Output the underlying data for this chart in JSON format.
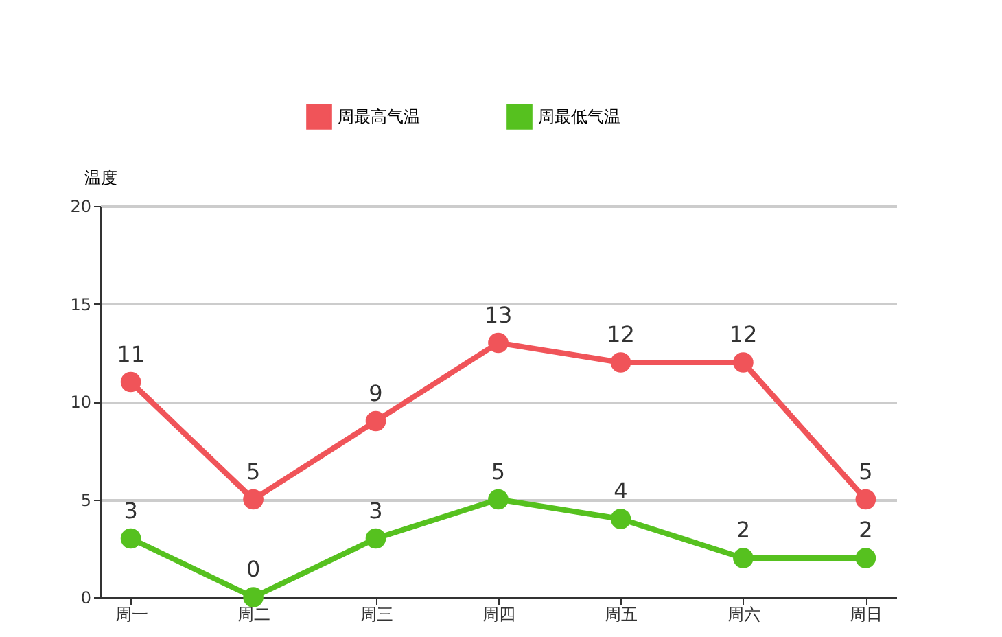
{
  "chart_data": {
    "type": "line",
    "ylabel": "温度",
    "categories": [
      "周一",
      "周二",
      "周三",
      "周四",
      "周五",
      "周六",
      "周日"
    ],
    "series": [
      {
        "name": "周最高气温",
        "color": "#f05459",
        "values": [
          11,
          5,
          9,
          13,
          12,
          12,
          5
        ]
      },
      {
        "name": "周最低气温",
        "color": "#56c11f",
        "values": [
          3,
          0,
          3,
          5,
          4,
          2,
          2
        ]
      }
    ],
    "ylim": [
      0,
      20
    ],
    "yticks": [
      0,
      5,
      10,
      15,
      20
    ],
    "grid": "y",
    "legend": "top",
    "marker": "circle",
    "line_style": "solid",
    "data_labels": true
  }
}
